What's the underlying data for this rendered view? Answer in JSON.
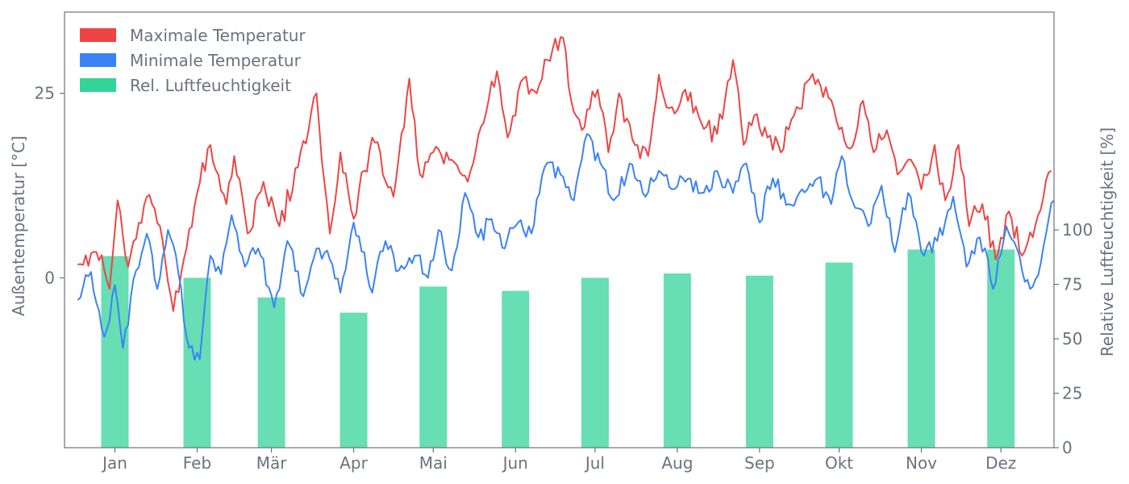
{
  "chart_data": {
    "type": "line",
    "title": "",
    "x_axis": {
      "type": "date",
      "year": 2023,
      "range": [
        "2022-12-27",
        "2024-01-04"
      ],
      "tick_labels": [
        "Jan",
        "Feb",
        "Mär",
        "Apr",
        "Mai",
        "Jun",
        "Jul",
        "Aug",
        "Sep",
        "Okt",
        "Nov",
        "Dez"
      ],
      "tick_dates": [
        "2023-01-15",
        "2023-02-15",
        "2023-03-15",
        "2023-04-15",
        "2023-05-15",
        "2023-06-15",
        "2023-07-15",
        "2023-08-15",
        "2023-09-15",
        "2023-10-15",
        "2023-11-15",
        "2023-12-15"
      ]
    },
    "y_left": {
      "label": "Außentemperatur [°C]",
      "range": [
        -23,
        36
      ],
      "ticks": [
        0,
        25
      ]
    },
    "y_right": {
      "label": "Relative Luftfeuchtigkeit [%]",
      "range": [
        0,
        200
      ],
      "ticks": [
        0,
        25,
        50,
        75,
        100
      ]
    },
    "legend": {
      "position": "top-left",
      "entries": [
        "Maximale Temperatur",
        "Minimale Temperatur",
        "Rel. Luftfeuchtigkeit"
      ]
    },
    "grid": false,
    "colors": {
      "max_temp": "#ef4444",
      "min_temp": "#3b82f6",
      "humidity": "#34d399",
      "axis": "#6b7280"
    },
    "series": [
      {
        "name": "Maximale Temperatur",
        "type": "line",
        "axis": "left",
        "points": [
          [
            "2023-01-01",
            1.8
          ],
          [
            "2023-01-08",
            3.5
          ],
          [
            "2023-01-13",
            -1.5
          ],
          [
            "2023-01-16",
            10.5
          ],
          [
            "2023-01-20",
            1.5
          ],
          [
            "2023-01-27",
            11
          ],
          [
            "2023-02-01",
            7
          ],
          [
            "2023-02-06",
            -4.5
          ],
          [
            "2023-02-11",
            4
          ],
          [
            "2023-02-15",
            11.5
          ],
          [
            "2023-02-20",
            18
          ],
          [
            "2023-02-26",
            10
          ],
          [
            "2023-03-01",
            16.5
          ],
          [
            "2023-03-06",
            6
          ],
          [
            "2023-03-12",
            13
          ],
          [
            "2023-03-18",
            7
          ],
          [
            "2023-03-25",
            15
          ],
          [
            "2023-04-01",
            25
          ],
          [
            "2023-04-06",
            6
          ],
          [
            "2023-04-10",
            17
          ],
          [
            "2023-04-15",
            8
          ],
          [
            "2023-04-22",
            19
          ],
          [
            "2023-04-30",
            11
          ],
          [
            "2023-05-06",
            27
          ],
          [
            "2023-05-10",
            14
          ],
          [
            "2023-05-15",
            17
          ],
          [
            "2023-05-22",
            16
          ],
          [
            "2023-05-28",
            13
          ],
          [
            "2023-06-03",
            21
          ],
          [
            "2023-06-08",
            28
          ],
          [
            "2023-06-12",
            19
          ],
          [
            "2023-06-18",
            27
          ],
          [
            "2023-06-23",
            25
          ],
          [
            "2023-06-29",
            31
          ],
          [
            "2023-07-03",
            32.5
          ],
          [
            "2023-07-06",
            24
          ],
          [
            "2023-07-10",
            20
          ],
          [
            "2023-07-16",
            25.5
          ],
          [
            "2023-07-20",
            17
          ],
          [
            "2023-07-24",
            25
          ],
          [
            "2023-07-30",
            18
          ],
          [
            "2023-08-04",
            16.5
          ],
          [
            "2023-08-08",
            27.5
          ],
          [
            "2023-08-12",
            23
          ],
          [
            "2023-08-18",
            25.5
          ],
          [
            "2023-08-24",
            21
          ],
          [
            "2023-08-30",
            19.5
          ],
          [
            "2023-09-05",
            29.5
          ],
          [
            "2023-09-09",
            18
          ],
          [
            "2023-09-13",
            22
          ],
          [
            "2023-09-18",
            19
          ],
          [
            "2023-09-23",
            17
          ],
          [
            "2023-09-28",
            22
          ],
          [
            "2023-10-04",
            27
          ],
          [
            "2023-10-08",
            26
          ],
          [
            "2023-10-13",
            23
          ],
          [
            "2023-10-19",
            17.5
          ],
          [
            "2023-10-24",
            24
          ],
          [
            "2023-10-28",
            17
          ],
          [
            "2023-11-02",
            20
          ],
          [
            "2023-11-06",
            14
          ],
          [
            "2023-11-10",
            16
          ],
          [
            "2023-11-15",
            12
          ],
          [
            "2023-11-20",
            18
          ],
          [
            "2023-11-24",
            10.5
          ],
          [
            "2023-11-29",
            18
          ],
          [
            "2023-12-03",
            7
          ],
          [
            "2023-12-08",
            10
          ],
          [
            "2023-12-13",
            2.5
          ],
          [
            "2023-12-18",
            9
          ],
          [
            "2023-12-23",
            3
          ],
          [
            "2023-12-29",
            8.5
          ],
          [
            "2024-01-03",
            14.5
          ]
        ]
      },
      {
        "name": "Minimale Temperatur",
        "type": "line",
        "axis": "left",
        "points": [
          [
            "2023-01-01",
            -3
          ],
          [
            "2023-01-06",
            0.8
          ],
          [
            "2023-01-11",
            -8
          ],
          [
            "2023-01-15",
            -1
          ],
          [
            "2023-01-18",
            -9.5
          ],
          [
            "2023-01-23",
            1
          ],
          [
            "2023-01-27",
            6
          ],
          [
            "2023-01-31",
            -1.5
          ],
          [
            "2023-02-04",
            6.5
          ],
          [
            "2023-02-07",
            3
          ],
          [
            "2023-02-11",
            -8
          ],
          [
            "2023-02-16",
            -11
          ],
          [
            "2023-02-20",
            3
          ],
          [
            "2023-02-24",
            0.5
          ],
          [
            "2023-02-28",
            8.5
          ],
          [
            "2023-03-05",
            1.5
          ],
          [
            "2023-03-10",
            4
          ],
          [
            "2023-03-16",
            -4
          ],
          [
            "2023-03-21",
            5
          ],
          [
            "2023-03-27",
            -2.5
          ],
          [
            "2023-04-01",
            4
          ],
          [
            "2023-04-06",
            2.5
          ],
          [
            "2023-04-10",
            -2
          ],
          [
            "2023-04-15",
            7.5
          ],
          [
            "2023-04-22",
            -2
          ],
          [
            "2023-04-27",
            5
          ],
          [
            "2023-05-02",
            1
          ],
          [
            "2023-05-08",
            3
          ],
          [
            "2023-05-13",
            0
          ],
          [
            "2023-05-17",
            6.5
          ],
          [
            "2023-05-22",
            1
          ],
          [
            "2023-05-27",
            11.5
          ],
          [
            "2023-06-01",
            5.5
          ],
          [
            "2023-06-06",
            8
          ],
          [
            "2023-06-11",
            4
          ],
          [
            "2023-06-16",
            7.5
          ],
          [
            "2023-06-21",
            6
          ],
          [
            "2023-06-26",
            15
          ],
          [
            "2023-07-02",
            14
          ],
          [
            "2023-07-07",
            10.5
          ],
          [
            "2023-07-12",
            19.5
          ],
          [
            "2023-07-17",
            15.5
          ],
          [
            "2023-07-22",
            10.5
          ],
          [
            "2023-07-28",
            15.5
          ],
          [
            "2023-08-03",
            11
          ],
          [
            "2023-08-08",
            14.5
          ],
          [
            "2023-08-13",
            12
          ],
          [
            "2023-08-18",
            13
          ],
          [
            "2023-08-24",
            11.5
          ],
          [
            "2023-08-30",
            14.5
          ],
          [
            "2023-09-05",
            11.5
          ],
          [
            "2023-09-10",
            15.5
          ],
          [
            "2023-09-15",
            7.5
          ],
          [
            "2023-09-20",
            13.5
          ],
          [
            "2023-09-26",
            10
          ],
          [
            "2023-10-01",
            12
          ],
          [
            "2023-10-07",
            13.5
          ],
          [
            "2023-10-12",
            10
          ],
          [
            "2023-10-16",
            16.5
          ],
          [
            "2023-10-21",
            9.5
          ],
          [
            "2023-10-26",
            7
          ],
          [
            "2023-10-31",
            12.5
          ],
          [
            "2023-11-05",
            3.5
          ],
          [
            "2023-11-10",
            11.5
          ],
          [
            "2023-11-16",
            3
          ],
          [
            "2023-11-21",
            5
          ],
          [
            "2023-11-27",
            11
          ],
          [
            "2023-12-02",
            1.5
          ],
          [
            "2023-12-07",
            5.5
          ],
          [
            "2023-12-12",
            -1.5
          ],
          [
            "2023-12-17",
            7
          ],
          [
            "2023-12-21",
            4
          ],
          [
            "2023-12-26",
            -1.5
          ],
          [
            "2023-12-30",
            2
          ],
          [
            "2024-01-02",
            8
          ],
          [
            "2024-01-04",
            10.5
          ]
        ]
      },
      {
        "name": "Rel. Luftfeuchtigkeit",
        "type": "bar",
        "axis": "right",
        "months": [
          "Jan",
          "Feb",
          "Mär",
          "Apr",
          "Mai",
          "Jun",
          "Jul",
          "Aug",
          "Sep",
          "Okt",
          "Nov",
          "Dez"
        ],
        "values": [
          88,
          78,
          69,
          62,
          74,
          72,
          78,
          80,
          79,
          85,
          91,
          91
        ]
      }
    ]
  }
}
